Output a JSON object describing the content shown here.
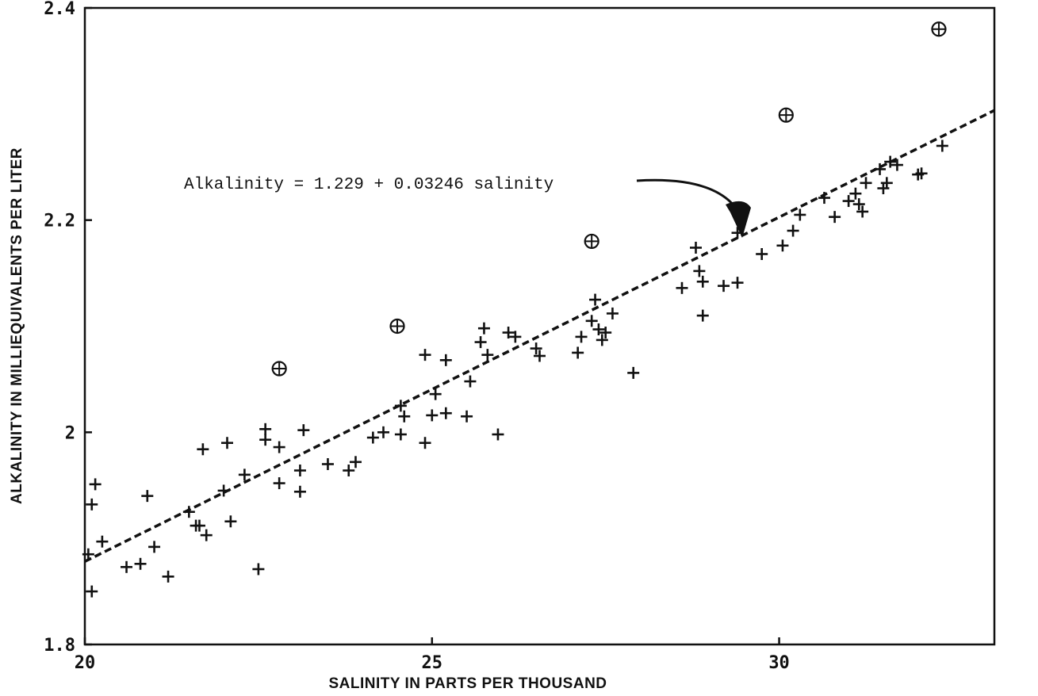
{
  "chart_data": {
    "type": "scatter",
    "title": "",
    "xlabel": "SALINITY IN PARTS PER THOUSAND",
    "ylabel": "ALKALINITY IN MILLIEQUIVALENTS PER LITER",
    "xlim": [
      20,
      33.1
    ],
    "ylim": [
      1.8,
      2.4
    ],
    "x_ticks": [
      20,
      25,
      30
    ],
    "x_tick_labels": [
      "20",
      "25",
      "30"
    ],
    "y_ticks": [
      1.8,
      2.0,
      2.2,
      2.4
    ],
    "y_tick_labels": [
      "1.8",
      "2",
      "2.2",
      "2.4"
    ],
    "grid": false,
    "annotation": "Alkalinity = 1.229 + 0.03246 salinity",
    "regression": {
      "intercept": 1.229,
      "slope": 0.03246,
      "style": "dashed"
    },
    "series": [
      {
        "marker": "plus",
        "points": [
          [
            20.05,
            1.885
          ],
          [
            20.1,
            1.85
          ],
          [
            20.1,
            1.932
          ],
          [
            20.15,
            1.951
          ],
          [
            20.25,
            1.897
          ],
          [
            20.6,
            1.873
          ],
          [
            20.8,
            1.876
          ],
          [
            20.9,
            1.94
          ],
          [
            21.0,
            1.892
          ],
          [
            21.2,
            1.864
          ],
          [
            21.5,
            1.925
          ],
          [
            21.6,
            1.912
          ],
          [
            21.65,
            1.912
          ],
          [
            21.7,
            1.984
          ],
          [
            21.75,
            1.903
          ],
          [
            22.0,
            1.945
          ],
          [
            22.05,
            1.99
          ],
          [
            22.1,
            1.916
          ],
          [
            22.3,
            1.96
          ],
          [
            22.5,
            1.871
          ],
          [
            22.6,
            1.993
          ],
          [
            22.6,
            2.003
          ],
          [
            22.8,
            1.952
          ],
          [
            22.8,
            1.986
          ],
          [
            23.1,
            1.964
          ],
          [
            23.1,
            1.944
          ],
          [
            23.15,
            2.002
          ],
          [
            23.5,
            1.97
          ],
          [
            23.8,
            1.964
          ],
          [
            23.9,
            1.972
          ],
          [
            24.15,
            1.995
          ],
          [
            24.3,
            2.0
          ],
          [
            24.55,
            2.025
          ],
          [
            24.55,
            1.998
          ],
          [
            24.6,
            2.015
          ],
          [
            24.9,
            1.99
          ],
          [
            24.9,
            2.073
          ],
          [
            25.0,
            2.016
          ],
          [
            25.05,
            2.036
          ],
          [
            25.2,
            2.018
          ],
          [
            25.2,
            2.068
          ],
          [
            25.5,
            2.015
          ],
          [
            25.55,
            2.048
          ],
          [
            25.7,
            2.085
          ],
          [
            25.75,
            2.098
          ],
          [
            25.8,
            2.073
          ],
          [
            25.95,
            1.998
          ],
          [
            26.1,
            2.094
          ],
          [
            26.2,
            2.09
          ],
          [
            26.5,
            2.079
          ],
          [
            26.55,
            2.072
          ],
          [
            27.1,
            2.075
          ],
          [
            27.15,
            2.09
          ],
          [
            27.3,
            2.105
          ],
          [
            27.35,
            2.125
          ],
          [
            27.4,
            2.097
          ],
          [
            27.45,
            2.087
          ],
          [
            27.5,
            2.094
          ],
          [
            27.6,
            2.112
          ],
          [
            27.9,
            2.056
          ],
          [
            28.6,
            2.136
          ],
          [
            28.8,
            2.174
          ],
          [
            28.85,
            2.152
          ],
          [
            28.9,
            2.142
          ],
          [
            28.9,
            2.11
          ],
          [
            29.2,
            2.138
          ],
          [
            29.4,
            2.188
          ],
          [
            29.4,
            2.141
          ],
          [
            29.75,
            2.168
          ],
          [
            30.05,
            2.176
          ],
          [
            30.2,
            2.19
          ],
          [
            30.3,
            2.205
          ],
          [
            30.65,
            2.221
          ],
          [
            30.8,
            2.203
          ],
          [
            31.0,
            2.218
          ],
          [
            31.1,
            2.225
          ],
          [
            31.15,
            2.215
          ],
          [
            31.2,
            2.208
          ],
          [
            31.25,
            2.235
          ],
          [
            31.45,
            2.248
          ],
          [
            31.5,
            2.23
          ],
          [
            31.55,
            2.235
          ],
          [
            31.6,
            2.255
          ],
          [
            31.7,
            2.252
          ],
          [
            32.0,
            2.243
          ],
          [
            32.05,
            2.244
          ],
          [
            32.35,
            2.27
          ]
        ]
      },
      {
        "marker": "circled-plus",
        "points": [
          [
            22.8,
            2.06
          ],
          [
            24.5,
            2.1
          ],
          [
            27.3,
            2.18
          ],
          [
            30.1,
            2.299
          ],
          [
            32.3,
            2.38
          ]
        ]
      }
    ]
  }
}
